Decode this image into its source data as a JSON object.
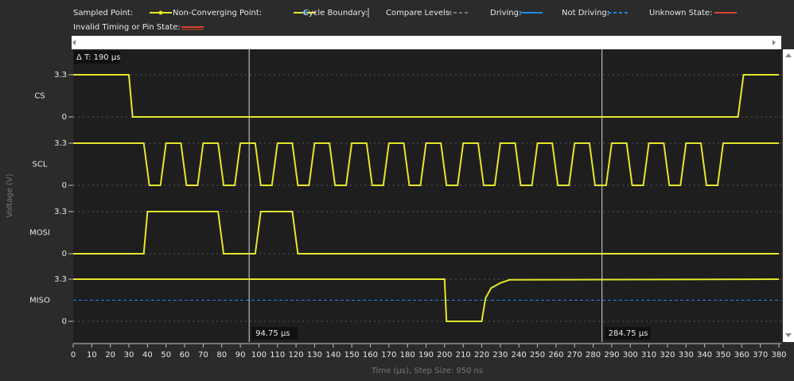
{
  "chart_data": {
    "type": "line",
    "xlabel": "Time (µs), Step Size: 950 ns",
    "ylabel": "Voltage (V)",
    "xlim": [
      0,
      380
    ],
    "xticks": [
      0,
      10,
      20,
      30,
      40,
      50,
      60,
      70,
      80,
      90,
      100,
      110,
      120,
      130,
      140,
      150,
      160,
      170,
      180,
      190,
      200,
      210,
      220,
      230,
      240,
      250,
      260,
      270,
      280,
      290,
      300,
      310,
      320,
      330,
      340,
      350,
      360,
      370,
      380
    ],
    "legend": [
      "Sampled Point:",
      "Non-Converging Point:",
      "Cycle Boundary:",
      "Compare Levels:",
      "Driving:",
      "Not Driving:",
      "Unknown State:",
      "Invalid Timing or Pin State:"
    ],
    "delta_label": "Δ T: 190 µs",
    "cursors": [
      {
        "x": 94.75,
        "label": "94.75 µs"
      },
      {
        "x": 284.75,
        "label": "284.75 µs"
      }
    ],
    "series": [
      {
        "name": "CS",
        "color": "#e4e62c",
        "ylim": [
          0,
          3.3
        ],
        "yticks": [
          0,
          3.3
        ],
        "x": [
          0,
          30,
          32,
          358,
          361,
          380
        ],
        "values": [
          3.3,
          3.3,
          0,
          0,
          3.3,
          3.3
        ]
      },
      {
        "name": "SCL",
        "color": "#e4e62c",
        "ylim": [
          0,
          3.3
        ],
        "yticks": [
          0,
          3.3
        ],
        "x": [
          0,
          38,
          41,
          47,
          50,
          58,
          61,
          67,
          70,
          78,
          81,
          87,
          90,
          98,
          101,
          107,
          110,
          118,
          121,
          127,
          130,
          138,
          141,
          147,
          150,
          158,
          161,
          167,
          170,
          178,
          181,
          187,
          190,
          198,
          201,
          207,
          210,
          218,
          221,
          227,
          230,
          238,
          241,
          247,
          250,
          258,
          261,
          267,
          270,
          278,
          281,
          287,
          290,
          298,
          301,
          307,
          310,
          318,
          321,
          327,
          330,
          338,
          341,
          347,
          350,
          380
        ],
        "values": [
          3.3,
          3.3,
          0,
          0,
          3.3,
          3.3,
          0,
          0,
          3.3,
          3.3,
          0,
          0,
          3.3,
          3.3,
          0,
          0,
          3.3,
          3.3,
          0,
          0,
          3.3,
          3.3,
          0,
          0,
          3.3,
          3.3,
          0,
          0,
          3.3,
          3.3,
          0,
          0,
          3.3,
          3.3,
          0,
          0,
          3.3,
          3.3,
          0,
          0,
          3.3,
          3.3,
          0,
          0,
          3.3,
          3.3,
          0,
          0,
          3.3,
          3.3,
          0,
          0,
          3.3,
          3.3,
          0,
          0,
          3.3,
          3.3,
          0,
          0,
          3.3,
          3.3,
          0,
          0,
          3.3,
          3.3
        ]
      },
      {
        "name": "MOSI",
        "color": "#e4e62c",
        "ylim": [
          0,
          3.3
        ],
        "yticks": [
          0,
          3.3
        ],
        "x": [
          0,
          38,
          40,
          78,
          81,
          98,
          101,
          118,
          121,
          380
        ],
        "values": [
          0,
          0,
          3.3,
          3.3,
          0,
          0,
          3.3,
          3.3,
          0,
          0
        ]
      },
      {
        "name": "MISO",
        "color": "#e4e62c",
        "ylim": [
          0,
          3.3
        ],
        "yticks": [
          0,
          3.3
        ],
        "threshold": 1.65,
        "x": [
          0,
          200,
          201,
          220,
          222,
          225,
          230,
          235,
          380
        ],
        "values": [
          3.3,
          3.3,
          0,
          0,
          1.8,
          2.6,
          3.0,
          3.25,
          3.3
        ]
      }
    ]
  }
}
